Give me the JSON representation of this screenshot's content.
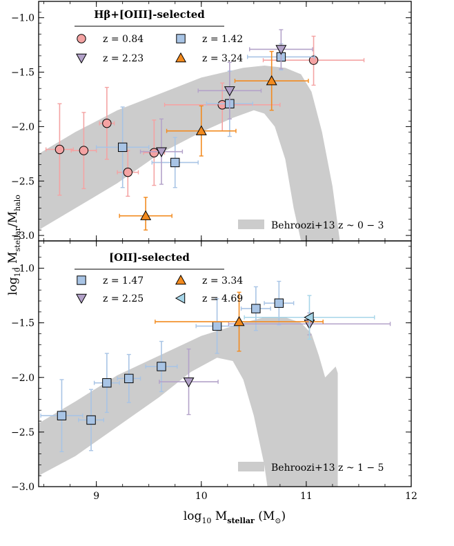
{
  "figure": {
    "x_label_main": "log",
    "x_label_sub": "10",
    "x_label_rest": " M",
    "x_label_rest_sub": "stellar",
    "x_label_unit": " (M",
    "x_label_unit_sub": "⊙",
    "x_label_close": ")",
    "y_label_main": "log",
    "y_label_sub": "10",
    "y_label_rest": " M",
    "y_label_num_sub": "stellar",
    "y_label_slash": "/M",
    "y_label_den_sub": "halo"
  },
  "chart_data": [
    {
      "type": "scatter",
      "panel": "top",
      "title": "Hβ+[OIII]-selected",
      "xlim": [
        8.45,
        12.0
      ],
      "ylim": [
        -3.05,
        -0.85
      ],
      "x_ticks": [
        9,
        10,
        11,
        12
      ],
      "x_tick_labels": [
        "9",
        "10",
        "11",
        "12"
      ],
      "y_ticks": [
        -3.0,
        -2.5,
        -2.0,
        -1.5,
        -1.0
      ],
      "y_tick_labels": [
        "−3.0",
        "−2.5",
        "−2.0",
        "−1.5",
        "−1.0"
      ],
      "band": {
        "label": "Behroozi+13 z ~ 0 − 3",
        "color": "#cccccc",
        "upper": [
          [
            8.45,
            -2.25
          ],
          [
            8.8,
            -2.05
          ],
          [
            9.2,
            -1.85
          ],
          [
            9.6,
            -1.7
          ],
          [
            10.0,
            -1.55
          ],
          [
            10.4,
            -1.46
          ],
          [
            10.6,
            -1.44
          ],
          [
            10.8,
            -1.46
          ],
          [
            10.95,
            -1.52
          ],
          [
            11.05,
            -1.68
          ],
          [
            11.15,
            -2.05
          ],
          [
            11.25,
            -2.55
          ],
          [
            11.32,
            -3.05
          ]
        ],
        "lower": [
          [
            8.45,
            -2.95
          ],
          [
            8.8,
            -2.75
          ],
          [
            9.2,
            -2.52
          ],
          [
            9.6,
            -2.25
          ],
          [
            10.0,
            -2.05
          ],
          [
            10.3,
            -1.92
          ],
          [
            10.5,
            -1.85
          ],
          [
            10.6,
            -1.88
          ],
          [
            10.7,
            -2.0
          ],
          [
            10.8,
            -2.3
          ],
          [
            10.88,
            -2.75
          ],
          [
            10.95,
            -3.05
          ]
        ]
      },
      "series": [
        {
          "name": "z = 0.84",
          "z_label": "0.84",
          "marker": "circle",
          "color": "#f4a3a3",
          "edge": "#000000",
          "err_color": "#f4a3a3",
          "points": [
            {
              "x": 8.65,
              "y": -2.21,
              "xerr": 0.13,
              "yerr_lo": 0.42,
              "yerr_hi": 0.42
            },
            {
              "x": 8.88,
              "y": -2.22,
              "xerr": 0.12,
              "yerr_lo": 0.35,
              "yerr_hi": 0.35
            },
            {
              "x": 9.1,
              "y": -1.97,
              "xerr": 0.07,
              "yerr_lo": 0.33,
              "yerr_hi": 0.33
            },
            {
              "x": 9.3,
              "y": -2.42,
              "xerr": 0.1,
              "yerr_lo": 0.22,
              "yerr_hi": 0.2
            },
            {
              "x": 9.55,
              "y": -2.24,
              "xerr": 0.1,
              "yerr_lo": 0.3,
              "yerr_hi": 0.3
            },
            {
              "x": 10.2,
              "y": -1.8,
              "xerr": 0.55,
              "yerr_lo": 0.24,
              "yerr_hi": 0.2
            },
            {
              "x": 11.07,
              "y": -1.39,
              "xerr": 0.48,
              "yerr_lo": 0.23,
              "yerr_hi": 0.22
            }
          ]
        },
        {
          "name": "z = 1.42",
          "z_label": "1.42",
          "marker": "square",
          "color": "#a8c4e5",
          "edge": "#000000",
          "err_color": "#a8c4e5",
          "points": [
            {
              "x": 9.25,
              "y": -2.19,
              "xerr": 0.25,
              "yerr_lo": 0.37,
              "yerr_hi": 0.37
            },
            {
              "x": 9.75,
              "y": -2.33,
              "xerr": 0.22,
              "yerr_lo": 0.23,
              "yerr_hi": 0.23
            },
            {
              "x": 10.27,
              "y": -1.79,
              "xerr": 0.22,
              "yerr_lo": 0.3,
              "yerr_hi": 0.3
            },
            {
              "x": 10.76,
              "y": -1.36,
              "xerr": 0.32,
              "yerr_lo": 0.12,
              "yerr_hi": 0.12
            }
          ]
        },
        {
          "name": "z = 2.23",
          "z_label": "2.23",
          "marker": "triangle-down",
          "color": "#b3a2c9",
          "edge": "#000000",
          "err_color": "#b3a2c9",
          "points": [
            {
              "x": 9.62,
              "y": -2.23,
              "xerr": 0.2,
              "yerr_lo": 0.3,
              "yerr_hi": 0.3
            },
            {
              "x": 10.27,
              "y": -1.67,
              "xerr": 0.3,
              "yerr_lo": 0.26,
              "yerr_hi": 0.26
            },
            {
              "x": 10.76,
              "y": -1.29,
              "xerr": 0.3,
              "yerr_lo": 0.18,
              "yerr_hi": 0.18
            }
          ]
        },
        {
          "name": "z = 3.24",
          "z_label": "3.24",
          "marker": "triangle-up",
          "color": "#f28a1e",
          "edge": "#000000",
          "err_color": "#f28a1e",
          "points": [
            {
              "x": 9.47,
              "y": -2.82,
              "xerr": 0.25,
              "yerr_lo": 0.13,
              "yerr_hi": 0.17
            },
            {
              "x": 10.0,
              "y": -2.04,
              "xerr": 0.33,
              "yerr_lo": 0.23,
              "yerr_hi": 0.23
            },
            {
              "x": 10.67,
              "y": -1.58,
              "xerr": 0.35,
              "yerr_lo": 0.27,
              "yerr_hi": 0.27
            }
          ]
        }
      ]
    },
    {
      "type": "scatter",
      "panel": "bottom",
      "title": "[OII]-selected",
      "xlim": [
        8.45,
        12.0
      ],
      "ylim": [
        -3.0,
        -0.75
      ],
      "x_ticks": [
        9,
        10,
        11,
        12
      ],
      "x_tick_labels": [
        "9",
        "10",
        "11",
        "12"
      ],
      "y_ticks": [
        -3.0,
        -2.5,
        -2.0,
        -1.5,
        -1.0
      ],
      "y_tick_labels": [
        "−3.0",
        "−2.5",
        "−2.0",
        "−1.5",
        "−1.0"
      ],
      "band": {
        "label": "Behroozi+13 z ~ 1 − 5",
        "color": "#cccccc",
        "upper": [
          [
            8.45,
            -2.42
          ],
          [
            8.8,
            -2.22
          ],
          [
            9.2,
            -1.98
          ],
          [
            9.6,
            -1.8
          ],
          [
            10.0,
            -1.62
          ],
          [
            10.4,
            -1.5
          ],
          [
            10.6,
            -1.45
          ],
          [
            10.8,
            -1.45
          ],
          [
            10.95,
            -1.5
          ],
          [
            11.05,
            -1.6
          ],
          [
            11.12,
            -1.8
          ],
          [
            11.18,
            -2.0
          ],
          [
            11.28,
            -1.9
          ],
          [
            11.3,
            -1.96
          ],
          [
            11.3,
            -3.0
          ]
        ],
        "lower": [
          [
            8.45,
            -2.9
          ],
          [
            8.8,
            -2.72
          ],
          [
            9.2,
            -2.45
          ],
          [
            9.6,
            -2.18
          ],
          [
            9.9,
            -1.95
          ],
          [
            10.15,
            -1.82
          ],
          [
            10.3,
            -1.85
          ],
          [
            10.4,
            -2.02
          ],
          [
            10.5,
            -2.35
          ],
          [
            10.6,
            -2.8
          ],
          [
            10.63,
            -3.0
          ]
        ]
      },
      "series": [
        {
          "name": "z = 1.47",
          "z_label": "1.47",
          "marker": "square",
          "color": "#a8c4e5",
          "edge": "#000000",
          "err_color": "#a8c4e5",
          "points": [
            {
              "x": 8.67,
              "y": -2.35,
              "xerr": 0.2,
              "yerr_lo": 0.33,
              "yerr_hi": 0.33
            },
            {
              "x": 8.95,
              "y": -2.39,
              "xerr": 0.12,
              "yerr_lo": 0.28,
              "yerr_hi": 0.28
            },
            {
              "x": 9.1,
              "y": -2.05,
              "xerr": 0.12,
              "yerr_lo": 0.27,
              "yerr_hi": 0.27
            },
            {
              "x": 9.31,
              "y": -2.01,
              "xerr": 0.11,
              "yerr_lo": 0.22,
              "yerr_hi": 0.22
            },
            {
              "x": 9.62,
              "y": -1.9,
              "xerr": 0.15,
              "yerr_lo": 0.23,
              "yerr_hi": 0.23
            },
            {
              "x": 10.15,
              "y": -1.53,
              "xerr": 0.2,
              "yerr_lo": 0.25,
              "yerr_hi": 0.25
            },
            {
              "x": 10.52,
              "y": -1.37,
              "xerr": 0.14,
              "yerr_lo": 0.2,
              "yerr_hi": 0.2
            },
            {
              "x": 10.74,
              "y": -1.32,
              "xerr": 0.14,
              "yerr_lo": 0.2,
              "yerr_hi": 0.2
            }
          ]
        },
        {
          "name": "z = 2.25",
          "z_label": "2.25",
          "marker": "triangle-down",
          "color": "#b3a2c9",
          "edge": "#000000",
          "err_color": "#b3a2c9",
          "points": [
            {
              "x": 9.88,
              "y": -2.04,
              "xerr": 0.28,
              "yerr_lo": 0.3,
              "yerr_hi": 0.3
            },
            {
              "x": 11.03,
              "y": -1.51,
              "xerr": 0.77,
              "yerr_lo": 0.1,
              "yerr_hi": 0.1
            }
          ]
        },
        {
          "name": "z = 3.34",
          "z_label": "3.34",
          "marker": "triangle-up",
          "color": "#f28a1e",
          "edge": "#000000",
          "err_color": "#f28a1e",
          "points": [
            {
              "x": 10.36,
              "y": -1.49,
              "xerr": 0.8,
              "yerr_lo": 0.27,
              "yerr_hi": 0.27
            }
          ]
        },
        {
          "name": "z = 4.69",
          "z_label": "4.69",
          "marker": "triangle-left",
          "color": "#a6d5e8",
          "edge": "#000000",
          "err_color": "#a6d5e8",
          "points": [
            {
              "x": 11.03,
              "y": -1.45,
              "xerr": 0.62,
              "yerr_lo": 0.2,
              "yerr_hi": 0.2
            }
          ]
        }
      ]
    }
  ]
}
